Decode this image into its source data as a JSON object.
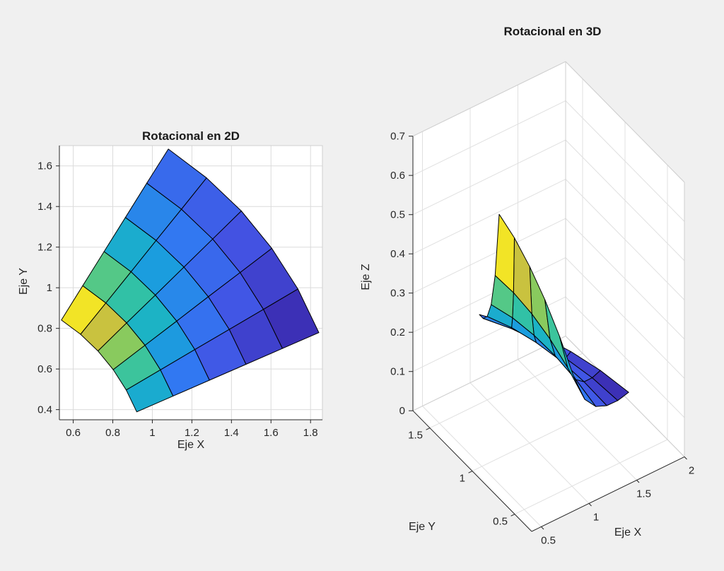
{
  "figure": {
    "background": "#f0f0f0",
    "axes_background": "#ffffff",
    "axis_color": "#262626",
    "grid_color": "#dbdbdb",
    "grid3_color": "#e0e0e0",
    "box_color": "#cfcfcf",
    "mesh_edge_color": "#000000",
    "colormap": "parula",
    "colormap_stops": [
      "#3a26a8",
      "#4353e4",
      "#3179f2",
      "#19a0dc",
      "#1dbdba",
      "#4fc88a",
      "#98cb52",
      "#d2c13c",
      "#f9ec21"
    ]
  },
  "chart_data": [
    {
      "type": "heatmap",
      "subtype": "2d-surface-mesh-top-view",
      "title": "Rotacional en 2D",
      "xlabel": "Eje X",
      "ylabel": "Eje Y",
      "xlim": [
        0.53,
        1.86
      ],
      "ylim": [
        0.35,
        1.7
      ],
      "clim": [
        0.08,
        0.63
      ],
      "grid": true,
      "xticks": [
        0.6,
        0.8,
        1,
        1.2,
        1.4,
        1.6,
        1.8
      ],
      "xtick_labels": [
        "0.6",
        "0.8",
        "1",
        "1.2",
        "1.4",
        "1.6",
        "1.8"
      ],
      "yticks": [
        0.4,
        0.6,
        0.8,
        1,
        1.2,
        1.4,
        1.6
      ],
      "ytick_labels": [
        "0.4",
        "0.6",
        "0.8",
        "1",
        "1.2",
        "1.4",
        "1.6"
      ],
      "mesh": {
        "x": [
          [
            0.921,
            0.868,
            0.802,
            0.725,
            0.637,
            0.54
          ],
          [
            1.105,
            1.041,
            0.963,
            0.87,
            0.765,
            0.648
          ],
          [
            1.289,
            1.215,
            1.123,
            1.015,
            0.892,
            0.756
          ],
          [
            1.474,
            1.389,
            1.283,
            1.16,
            1.019,
            0.864
          ],
          [
            1.658,
            1.562,
            1.444,
            1.305,
            1.147,
            0.972
          ],
          [
            1.842,
            1.736,
            1.604,
            1.45,
            1.274,
            1.081
          ]
        ],
        "y": [
          [
            0.389,
            0.497,
            0.597,
            0.689,
            0.771,
            0.841
          ],
          [
            0.467,
            0.596,
            0.717,
            0.827,
            0.925,
            1.01
          ],
          [
            0.545,
            0.696,
            0.836,
            0.964,
            1.079,
            1.178
          ],
          [
            0.623,
            0.795,
            0.956,
            1.102,
            1.233,
            1.346
          ],
          [
            0.701,
            0.894,
            1.075,
            1.24,
            1.387,
            1.515
          ],
          [
            0.779,
            0.994,
            1.194,
            1.378,
            1.541,
            1.683
          ]
        ],
        "c": [
          [
            0.312,
            0.398,
            0.478,
            0.551,
            0.617,
            0.673
          ],
          [
            0.216,
            0.276,
            0.332,
            0.383,
            0.428,
            0.467
          ],
          [
            0.159,
            0.203,
            0.244,
            0.281,
            0.315,
            0.343
          ],
          [
            0.122,
            0.155,
            0.187,
            0.215,
            0.241,
            0.263
          ],
          [
            0.096,
            0.123,
            0.147,
            0.17,
            0.19,
            0.208
          ],
          [
            0.078,
            0.099,
            0.119,
            0.138,
            0.154,
            0.168
          ]
        ]
      }
    },
    {
      "type": "heatmap",
      "subtype": "3d-surface-mesh",
      "title": "Rotacional en 3D",
      "xlabel": "Eje X",
      "ylabel": "Eje Y",
      "zlabel": "Eje Z",
      "xlim": [
        0.4,
        2.0
      ],
      "ylim": [
        0.3,
        1.7
      ],
      "zlim": [
        0,
        0.7
      ],
      "clim": [
        0.08,
        0.63
      ],
      "grid": true,
      "xticks": [
        0.5,
        1,
        1.5,
        2
      ],
      "xtick_labels": [
        "0.5",
        "1",
        "1.5",
        "2"
      ],
      "yticks": [
        0.5,
        1,
        1.5
      ],
      "ytick_labels": [
        "0.5",
        "1",
        "1.5"
      ],
      "zticks": [
        0,
        0.1,
        0.2,
        0.3,
        0.4,
        0.5,
        0.6,
        0.7
      ],
      "ztick_labels": [
        "0",
        "0.1",
        "0.2",
        "0.3",
        "0.4",
        "0.5",
        "0.6",
        "0.7"
      ],
      "mesh": {
        "x": [
          [
            0.921,
            0.868,
            0.802,
            0.725,
            0.637,
            0.54
          ],
          [
            1.105,
            1.041,
            0.963,
            0.87,
            0.765,
            0.648
          ],
          [
            1.289,
            1.215,
            1.123,
            1.015,
            0.892,
            0.756
          ],
          [
            1.474,
            1.389,
            1.283,
            1.16,
            1.019,
            0.864
          ],
          [
            1.658,
            1.562,
            1.444,
            1.305,
            1.147,
            0.972
          ],
          [
            1.842,
            1.736,
            1.604,
            1.45,
            1.274,
            1.081
          ]
        ],
        "y": [
          [
            0.389,
            0.497,
            0.597,
            0.689,
            0.771,
            0.841
          ],
          [
            0.467,
            0.596,
            0.717,
            0.827,
            0.925,
            1.01
          ],
          [
            0.545,
            0.696,
            0.836,
            0.964,
            1.079,
            1.178
          ],
          [
            0.623,
            0.795,
            0.956,
            1.102,
            1.233,
            1.346
          ],
          [
            0.701,
            0.894,
            1.075,
            1.24,
            1.387,
            1.515
          ],
          [
            0.779,
            0.994,
            1.194,
            1.378,
            1.541,
            1.683
          ]
        ],
        "z": [
          [
            0.312,
            0.398,
            0.478,
            0.551,
            0.617,
            0.673
          ],
          [
            0.216,
            0.276,
            0.332,
            0.383,
            0.428,
            0.467
          ],
          [
            0.159,
            0.203,
            0.244,
            0.281,
            0.315,
            0.343
          ],
          [
            0.122,
            0.155,
            0.187,
            0.215,
            0.241,
            0.263
          ],
          [
            0.096,
            0.123,
            0.147,
            0.17,
            0.19,
            0.208
          ],
          [
            0.078,
            0.099,
            0.119,
            0.138,
            0.154,
            0.168
          ]
        ]
      }
    }
  ]
}
